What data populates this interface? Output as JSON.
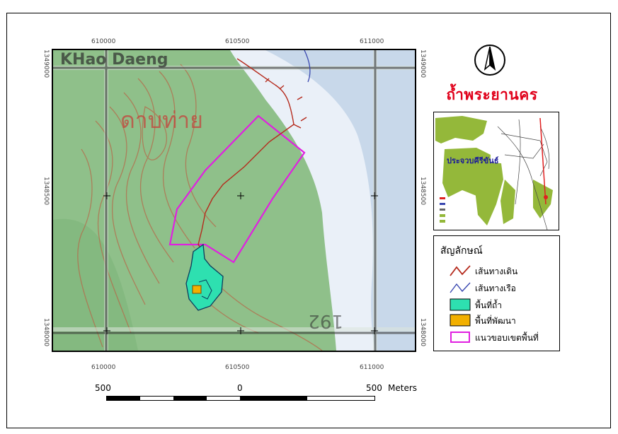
{
  "map": {
    "title": "ถ้ำพระยานคร",
    "top_coords": [
      "610000",
      "610500",
      "611000"
    ],
    "bottom_coords": [
      "610000",
      "610500",
      "611000"
    ],
    "left_coords": [
      "1349000",
      "1348500",
      "1348000"
    ],
    "right_coords": [
      "1349000",
      "1348500",
      "1348000"
    ],
    "topo_text_top": "KHao Daeng",
    "topo_text_mid": "ดาบท่าย",
    "contour_label": "192",
    "colors": {
      "land": "#8fc08a",
      "sea": "#e9eff7",
      "trail": "#b52a1c",
      "boat_route": "#3a48b0",
      "cave": "#2ee0b0",
      "development": "#f2b000",
      "boundary": "#e020e0"
    }
  },
  "inset": {
    "label": "ประจวบคีรีขันธ์"
  },
  "north_arrow": {
    "icon": "north-arrow-icon"
  },
  "legend": {
    "title": "สัญลักษณ์",
    "items": [
      {
        "label": "เส้นทางเดิน",
        "symbol": "red-line"
      },
      {
        "label": "เส้นทางเรือ",
        "symbol": "blue-line"
      },
      {
        "label": "พื้นที่ถ้ำ",
        "symbol": "cyan-fill"
      },
      {
        "label": "พื้นที่พัฒนา",
        "symbol": "orange-fill"
      },
      {
        "label": "แนวขอบเขตพื้นที่",
        "symbol": "magenta-outline"
      }
    ]
  },
  "scale": {
    "left": "500",
    "center": "0",
    "right": "500",
    "unit": "Meters"
  }
}
